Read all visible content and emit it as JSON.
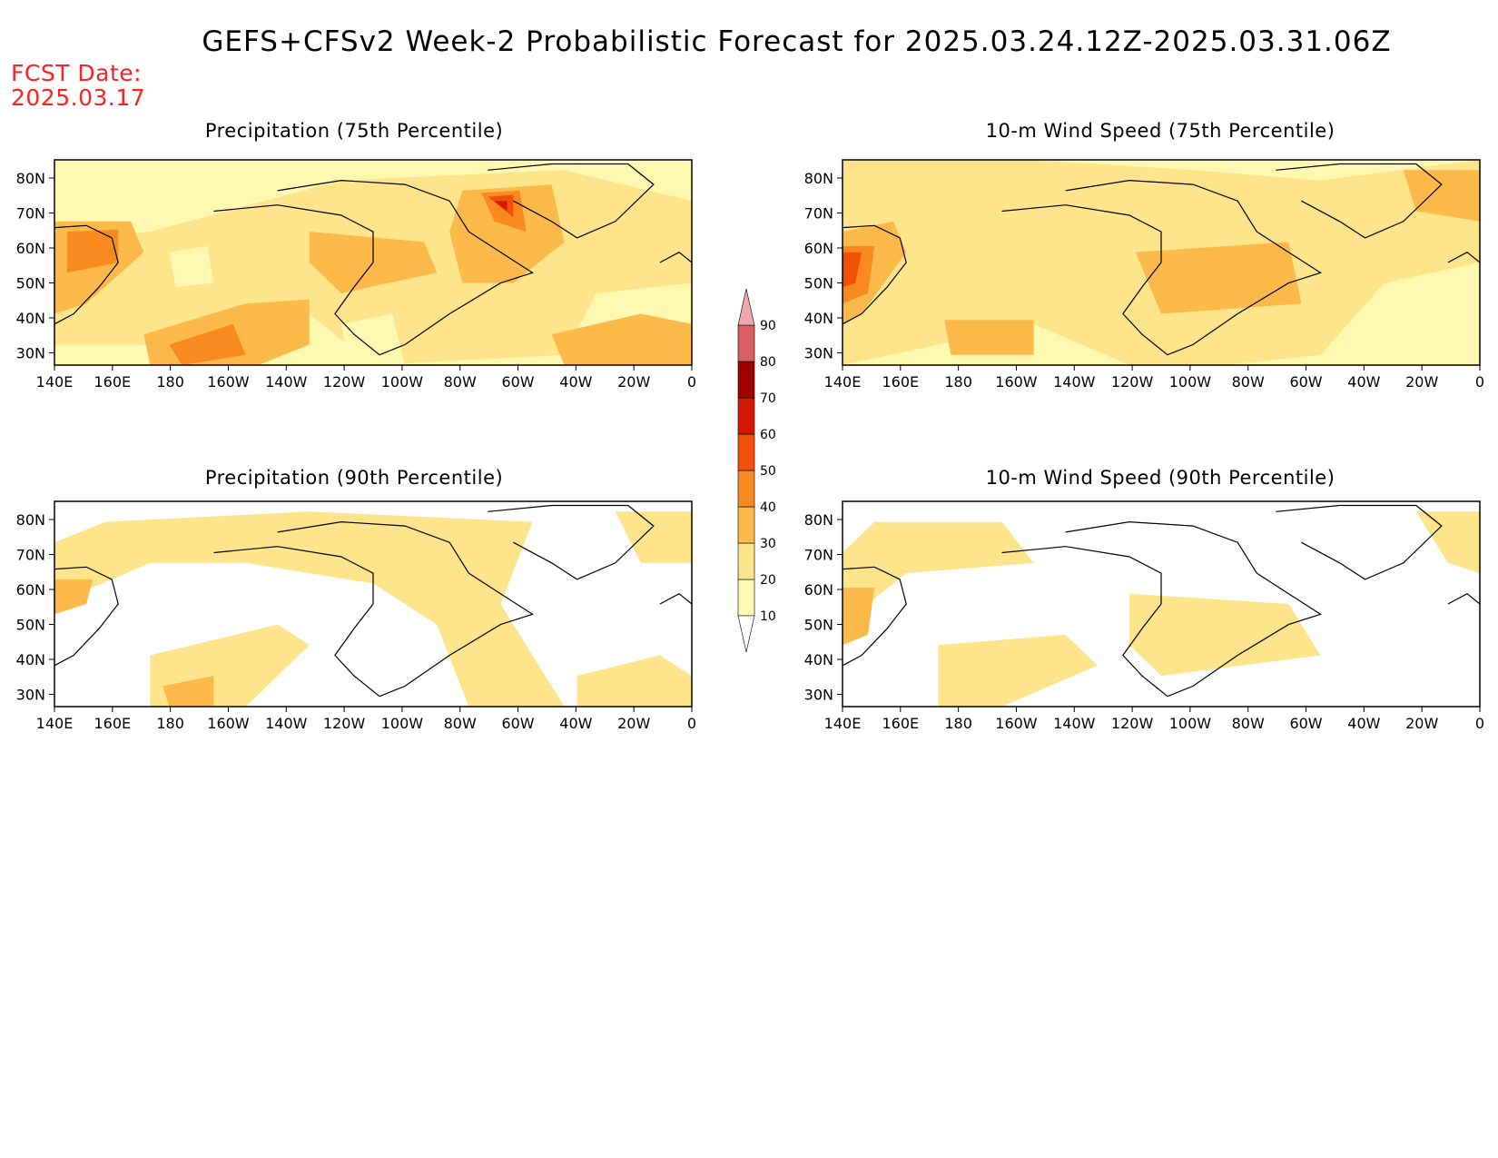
{
  "title": "GEFS+CFSv2 Week-2 Probabilistic Forecast for 2025.03.24.12Z-2025.03.31.06Z",
  "fcst_date_label": "FCST Date:",
  "fcst_date_value": "2025.03.17",
  "lon_ticks": [
    "140E",
    "160E",
    "180",
    "160W",
    "140W",
    "120W",
    "100W",
    "80W",
    "60W",
    "40W",
    "20W",
    "0"
  ],
  "lat_ticks": [
    "80N",
    "70N",
    "60N",
    "50N",
    "40N",
    "30N"
  ],
  "colorbar": {
    "levels": [
      "10",
      "20",
      "30",
      "40",
      "50",
      "60",
      "70",
      "80",
      "90"
    ],
    "colors": [
      "#fff8b0",
      "#fee48a",
      "#fdb94a",
      "#f98a20",
      "#f25008",
      "#d41800",
      "#a00000",
      "#d86060",
      "#f0a8b0"
    ]
  },
  "panels": [
    {
      "id": "precip75",
      "title": "Precipitation (75th Percentile)"
    },
    {
      "id": "wind75",
      "title": "10-m Wind Speed (75th Percentile)"
    },
    {
      "id": "precip90",
      "title": "Precipitation (90th Percentile)"
    },
    {
      "id": "wind90",
      "title": "10-m Wind Speed (90th Percentile)"
    }
  ]
}
